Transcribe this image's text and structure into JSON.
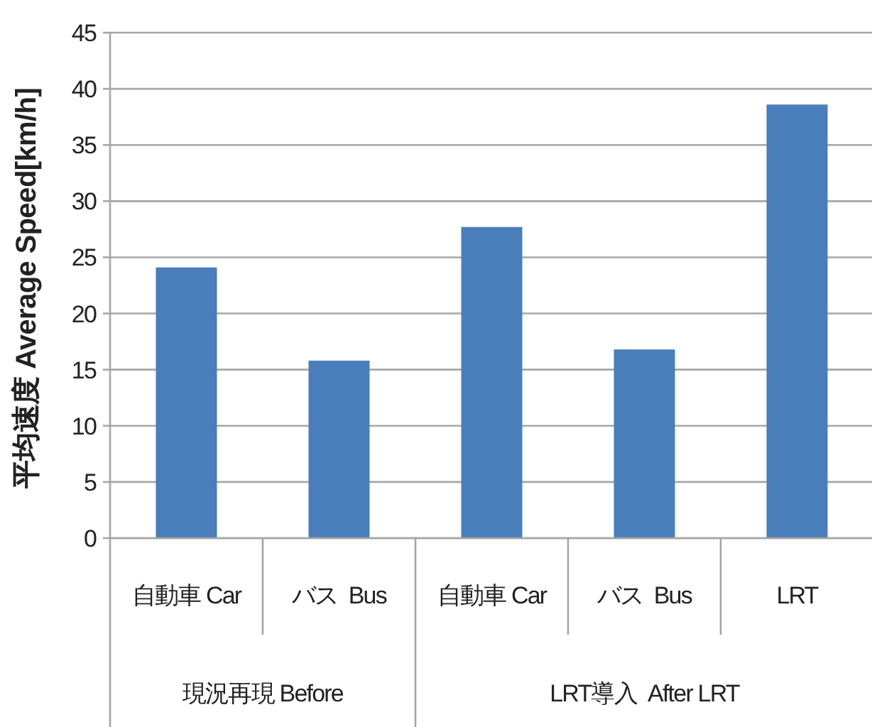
{
  "chart_data": {
    "type": "bar",
    "ylabel": "平均速度 Average Speed[km/h]",
    "categories": [
      "自動車 Car",
      "バス  Bus",
      "自動車 Car",
      "バス  Bus",
      "LRT"
    ],
    "values": [
      24.1,
      15.8,
      27.7,
      16.8,
      38.6
    ],
    "color": "#4a7ebb",
    "ylim": [
      0,
      45
    ],
    "yticks": [
      0,
      5,
      10,
      15,
      20,
      25,
      30,
      35,
      40,
      45
    ],
    "grid": "y",
    "annotations": [
      "現況再現 Before",
      "LRT導入  After LRT"
    ]
  }
}
